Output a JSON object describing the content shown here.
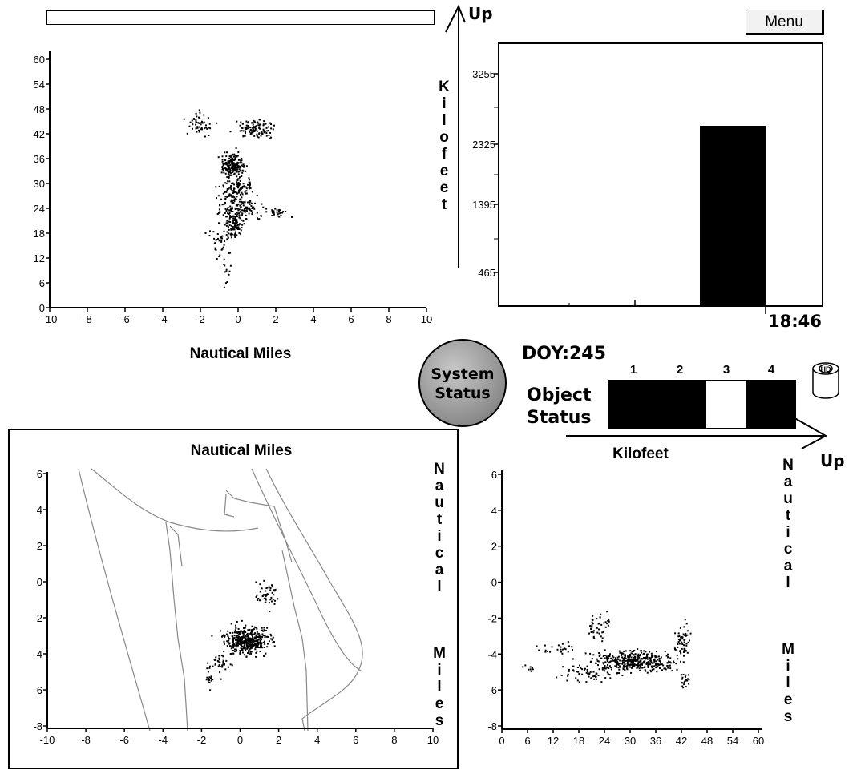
{
  "menu_label": "Menu",
  "top_left_plot": {
    "xlabel": "Nautical Miles",
    "x_ticks": [
      "-10",
      "-8",
      "-6",
      "-4",
      "-2",
      "0",
      "2",
      "4",
      "6",
      "8",
      "10"
    ],
    "y_ticks": [
      "0",
      "6",
      "12",
      "18",
      "24",
      "30",
      "36",
      "42",
      "48",
      "54",
      "60"
    ]
  },
  "altitude_axis": {
    "up_label": "Up",
    "vertical_label": [
      "K",
      "i",
      "l",
      "o",
      "f",
      "e",
      "e",
      "t"
    ]
  },
  "histogram": {
    "y_ticks": [
      "465",
      "1395",
      "2325",
      "3255"
    ],
    "time_label": "18:46"
  },
  "status": {
    "system_status_label": [
      "System",
      "Status"
    ],
    "doy_label": "DOY:245",
    "object_status_label": [
      "Object",
      "Status"
    ],
    "slot_numbers": [
      "1",
      "2",
      "3",
      "4"
    ],
    "hd_label": "HD"
  },
  "kilofeet_axis": {
    "up_label": "Up"
  },
  "bottom_left_plot": {
    "title": "Nautical Miles",
    "x_ticks": [
      "-10",
      "-8",
      "-6",
      "-4",
      "-2",
      "0",
      "2",
      "4",
      "6",
      "8",
      "10"
    ],
    "y_ticks": [
      "6",
      "4",
      "2",
      "0",
      "-2",
      "-4",
      "-6",
      "-8"
    ],
    "vertical_label_top": [
      "N",
      "a",
      "u",
      "t",
      "i",
      "c",
      "a",
      "l"
    ],
    "vertical_label_bottom": [
      "M",
      "i",
      "l",
      "e",
      "s"
    ]
  },
  "bottom_right_plot": {
    "title": "Kilofeet",
    "x_ticks": [
      "0",
      "6",
      "12",
      "18",
      "24",
      "30",
      "36",
      "42",
      "48",
      "54",
      "60"
    ],
    "y_ticks": [
      "6",
      "4",
      "2",
      "0",
      "-2",
      "-4",
      "-6",
      "-8"
    ],
    "vertical_label_top": [
      "N",
      "a",
      "u",
      "t",
      "i",
      "c",
      "a",
      "l"
    ],
    "vertical_label_bottom": [
      "M",
      "i",
      "l",
      "e",
      "s"
    ]
  }
}
